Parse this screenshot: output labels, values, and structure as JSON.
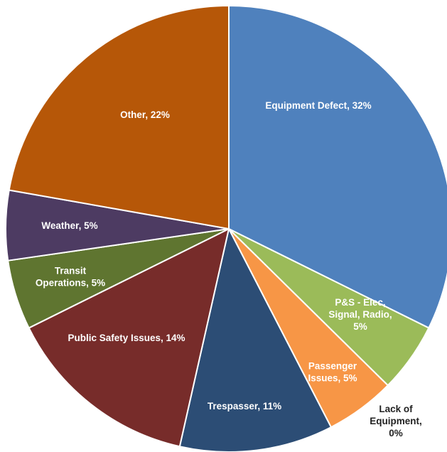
{
  "chart_data": {
    "type": "pie",
    "title": "",
    "slices": [
      {
        "category": "Equipment Defect",
        "value": 32,
        "label": "Equipment Defect, 32%",
        "color": "#4F81BD",
        "text_color": "#ffffff"
      },
      {
        "category": "P&S - Elec, Signal, Radio",
        "value": 5,
        "label": "P&S -  Elec, Signal, Radio, 5%",
        "color": "#9BBB59",
        "text_color": "#ffffff"
      },
      {
        "category": "Passenger Issues",
        "value": 5,
        "label": "Passenger Issues, 5%",
        "color": "#F79646",
        "text_color": "#ffffff"
      },
      {
        "category": "Lack of Equipment",
        "value": 0,
        "label": "Lack of Equipment, 0%",
        "color": "#8064A2",
        "text_color": "#222222"
      },
      {
        "category": "Trespasser",
        "value": 11,
        "label": "Trespasser, 11%",
        "color": "#2C4D75",
        "text_color": "#ffffff"
      },
      {
        "category": "Public Safety Issues",
        "value": 14,
        "label": "Public Safety Issues, 14%",
        "color": "#772C2A",
        "text_color": "#ffffff"
      },
      {
        "category": "Transit Operations",
        "value": 5,
        "label": "Transit Operations, 5%",
        "color": "#5F7530",
        "text_color": "#ffffff"
      },
      {
        "category": "Weather",
        "value": 5,
        "label": "Weather, 5%",
        "color": "#4D3B62",
        "text_color": "#ffffff"
      },
      {
        "category": "Other",
        "value": 22,
        "label": "Other, 22%",
        "color": "#B65708",
        "text_color": "#ffffff"
      }
    ],
    "start_angle_deg": 0,
    "direction": "clockwise",
    "legend": "none"
  }
}
